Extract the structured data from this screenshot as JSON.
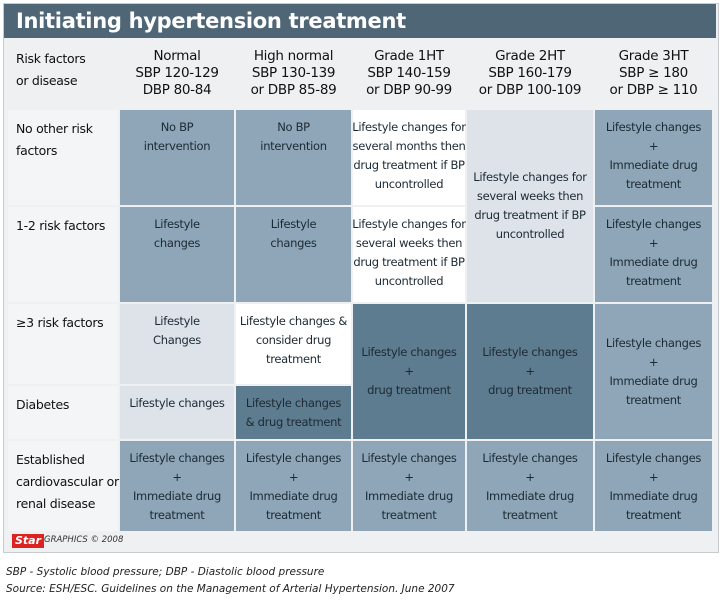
{
  "title": "Initiating hypertension treatment",
  "table": {
    "corner": [
      "Risk factors",
      "or disease"
    ],
    "columns": [
      [
        "Normal",
        "SBP 120-129",
        "DBP 80-84"
      ],
      [
        "High normal",
        "SBP 130-139",
        "or DBP 85-89"
      ],
      [
        "Grade 1HT",
        "SBP 140-159",
        "or DBP 90-99"
      ],
      [
        "Grade 2HT",
        "SBP 160-179",
        "or DBP 100-109"
      ],
      [
        "Grade 3HT",
        "SBP ≥ 180",
        "or DBP ≥ 110"
      ]
    ],
    "rows": [
      [
        "No other risk",
        "factors"
      ],
      [
        "1-2 risk factors"
      ],
      [
        "≥3 risk factors"
      ],
      [
        "Diabetes"
      ],
      [
        "Established",
        "cardiovascular or",
        "renal disease"
      ]
    ],
    "cells": [
      {
        "lines": [
          "No BP",
          "intervention"
        ]
      },
      {
        "lines": [
          "No BP",
          "intervention"
        ]
      },
      {
        "lines": [
          "Lifestyle changes for",
          "several months then",
          "drug treatment if BP",
          "uncontrolled"
        ]
      },
      {
        "lines": [
          "Lifestyle changes for",
          "several weeks then",
          "drug treatment if BP",
          "uncontrolled"
        ]
      },
      {
        "lines": [
          "Lifestyle changes",
          "+",
          "Immediate drug",
          "treatment"
        ]
      },
      {
        "lines": [
          "Lifestyle",
          "changes"
        ]
      },
      {
        "lines": [
          "Lifestyle",
          "changes"
        ]
      },
      {
        "lines": [
          "Lifestyle changes for",
          "several weeks then",
          "drug treatment if BP",
          "uncontrolled"
        ]
      },
      {
        "lines": [
          "Lifestyle changes",
          "+",
          "Immediate drug",
          "treatment"
        ]
      },
      {
        "lines": [
          "Lifestyle",
          "Changes"
        ]
      },
      {
        "lines": [
          "Lifestyle changes &",
          "consider drug",
          "treatment"
        ]
      },
      {
        "lines": [
          "Lifestyle changes",
          "+",
          "drug treatment"
        ]
      },
      {
        "lines": [
          "Lifestyle changes",
          "+",
          "drug treatment"
        ]
      },
      {
        "lines": [
          "Lifestyle changes",
          "+",
          "Immediate drug",
          "treatment"
        ]
      },
      {
        "lines": [
          "Lifestyle changes"
        ]
      },
      {
        "lines": [
          "Lifestyle changes",
          "& drug treatment"
        ]
      },
      {
        "lines": [
          "Lifestyle changes",
          "+",
          "Immediate drug",
          "treatment"
        ]
      },
      {
        "lines": [
          "Lifestyle changes",
          "+",
          "Immediate drug",
          "treatment"
        ]
      },
      {
        "lines": [
          "Lifestyle changes",
          "+",
          "Immediate drug",
          "treatment"
        ]
      },
      {
        "lines": [
          "Lifestyle changes",
          "+",
          "Immediate drug",
          "treatment"
        ]
      },
      {
        "lines": [
          "Lifestyle changes",
          "+",
          "Immediate drug",
          "treatment"
        ]
      }
    ]
  },
  "footer": {
    "logo": "Star",
    "credit": "GRAPHICS © 2008",
    "notes": [
      "SBP - Systolic blood pressure; DBP - Diastolic blood pressure",
      "Source: ESH/ESC. Guidelines on the Management of Arterial Hypertension. June 2007"
    ]
  }
}
